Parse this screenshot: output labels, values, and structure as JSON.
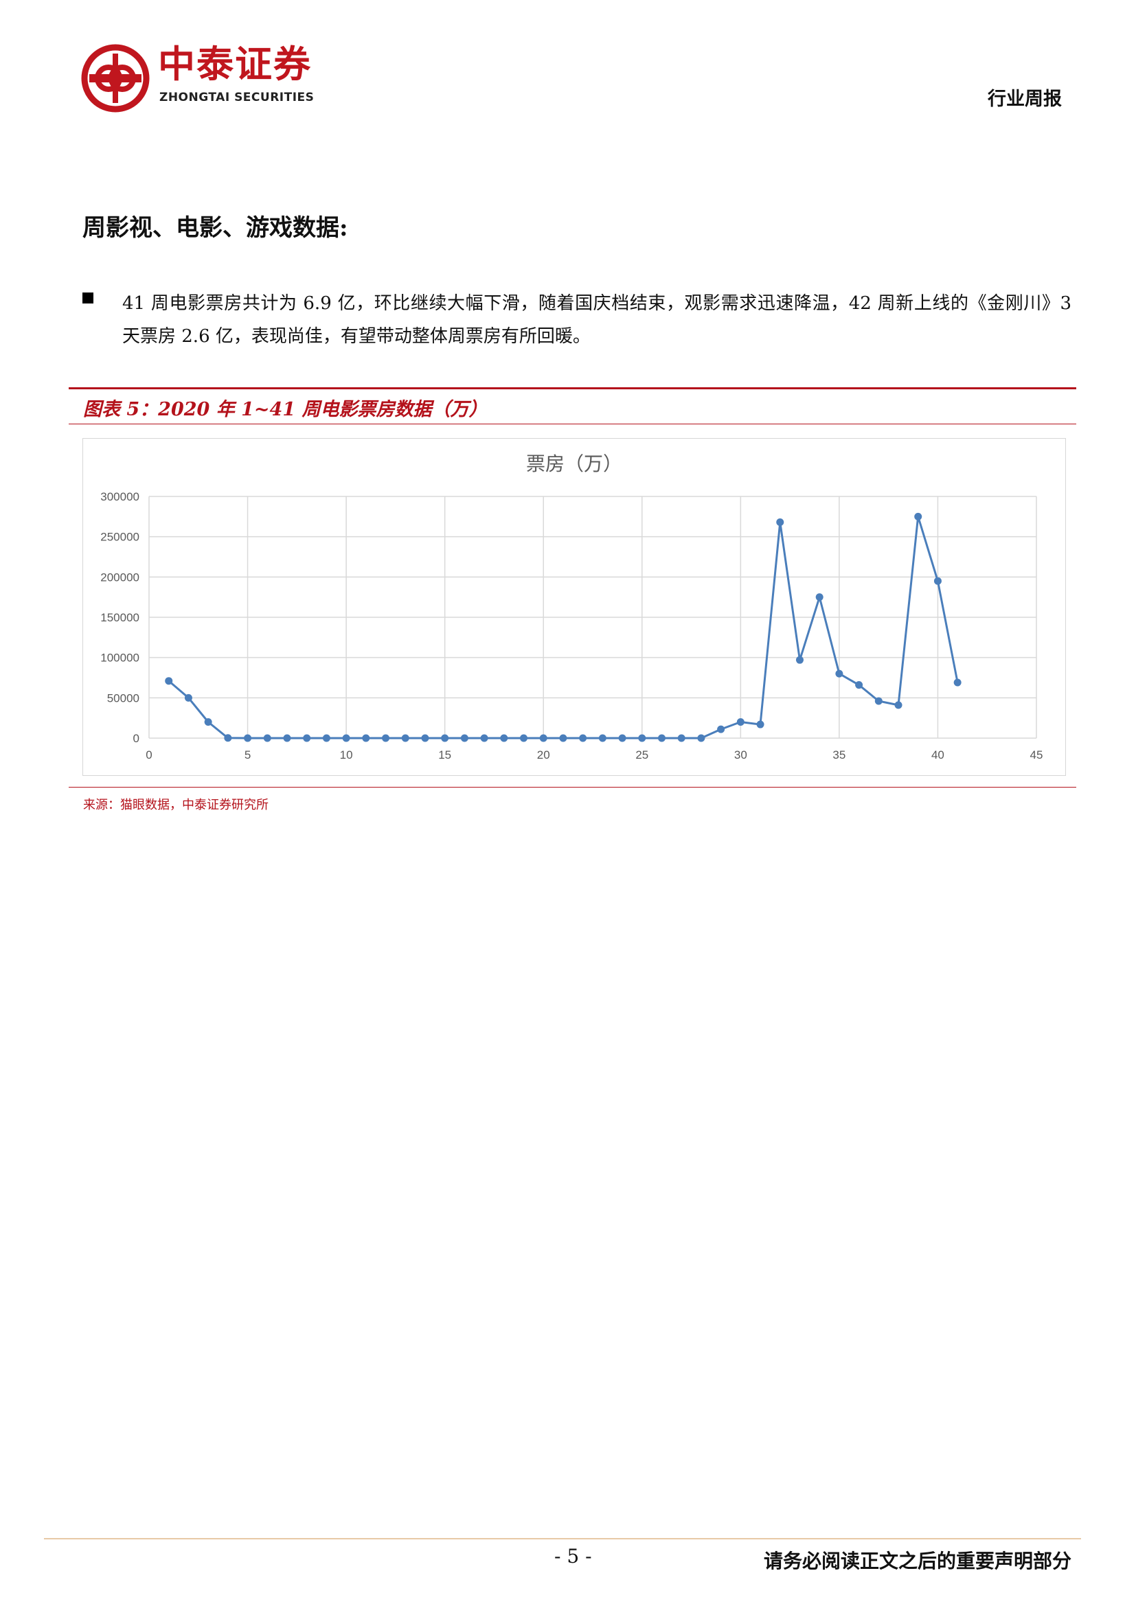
{
  "header": {
    "logo_cn": "中泰证券",
    "logo_en": "ZHONGTAI SECURITIES",
    "report_type": "行业周报"
  },
  "section": {
    "title": "周影视、电影、游戏数据:"
  },
  "bullet": {
    "text": "41 周电影票房共计为 6.9 亿，环比继续大幅下滑，随着国庆档结束，观影需求迅速降温，42 周新上线的《金刚川》3 天票房 2.6 亿，表现尚佳，有望带动整体周票房有所回暖。"
  },
  "figure": {
    "title": "图表 5：2020 年 1~41 周电影票房数据（万）",
    "source": "来源：猫眼数据，中泰证券研究所"
  },
  "chart_data": {
    "type": "line",
    "title": "票房（万）",
    "xlim": [
      0,
      45
    ],
    "ylim": [
      0,
      300000
    ],
    "x_ticks": [
      0,
      5,
      10,
      15,
      20,
      25,
      30,
      35,
      40,
      45
    ],
    "y_ticks": [
      0,
      50000,
      100000,
      150000,
      200000,
      250000,
      300000
    ],
    "grid": true,
    "legend": "none",
    "series_color": "#4a7ebb",
    "x": [
      1,
      2,
      3,
      4,
      5,
      6,
      7,
      8,
      9,
      10,
      11,
      12,
      13,
      14,
      15,
      16,
      17,
      18,
      19,
      20,
      21,
      22,
      23,
      24,
      25,
      26,
      27,
      28,
      29,
      30,
      31,
      32,
      33,
      34,
      35,
      36,
      37,
      38,
      39,
      40,
      41
    ],
    "values": [
      71000,
      50000,
      20000,
      200,
      0,
      0,
      0,
      0,
      0,
      0,
      0,
      0,
      0,
      0,
      0,
      0,
      0,
      0,
      0,
      0,
      0,
      0,
      0,
      0,
      0,
      0,
      0,
      0,
      11000,
      20000,
      17000,
      268000,
      97000,
      175000,
      80000,
      66000,
      46000,
      41000,
      275000,
      195000,
      69000
    ]
  },
  "footer": {
    "page_number": "- 5 -",
    "note": "请务必阅读正文之后的重要声明部分"
  },
  "colors": {
    "brand_red": "#c0161e",
    "rule_red": "#b4121b",
    "footer_rule": "#e8c9a6"
  }
}
